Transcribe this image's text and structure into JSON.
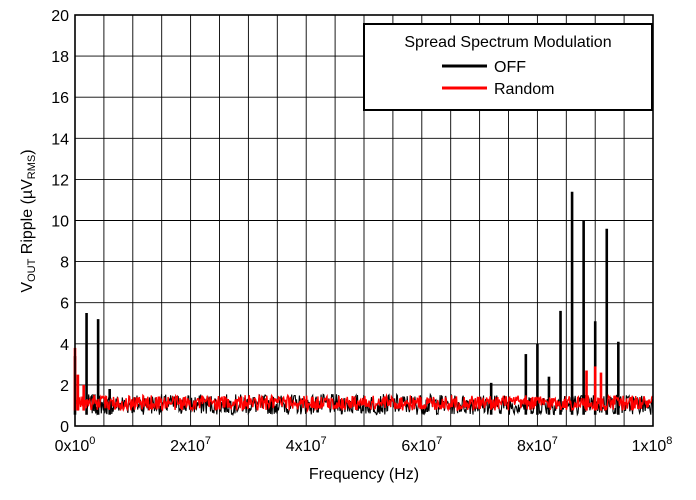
{
  "chart_data": {
    "type": "line",
    "title": "",
    "xlabel": "Frequency (Hz)",
    "ylabel": {
      "prefix": "V",
      "prefix_sub": "OUT",
      "middle": " Ripple (µV",
      "unit_sub": "RMS",
      "suffix": ")"
    },
    "xlim": [
      0,
      100000000
    ],
    "ylim": [
      0,
      20
    ],
    "x_ticks": [
      {
        "value": 0,
        "mantissa": "0x10",
        "exp": "0"
      },
      {
        "value": 20000000,
        "mantissa": "2x10",
        "exp": "7"
      },
      {
        "value": 40000000,
        "mantissa": "4x10",
        "exp": "7"
      },
      {
        "value": 60000000,
        "mantissa": "6x10",
        "exp": "7"
      },
      {
        "value": 80000000,
        "mantissa": "8x10",
        "exp": "7"
      },
      {
        "value": 100000000,
        "mantissa": "1x10",
        "exp": "8"
      }
    ],
    "y_ticks": [
      "0",
      "2",
      "4",
      "6",
      "8",
      "10",
      "12",
      "14",
      "16",
      "18",
      "20"
    ],
    "x_minor_divisions": 4,
    "grid": true,
    "legend": {
      "title": "Spread Spectrum Modulation",
      "position": "top-right"
    },
    "series": [
      {
        "name": "OFF",
        "color": "#000000",
        "baseline": {
          "start_x": 2000000,
          "end_x": 100000000,
          "low": 0.55,
          "high": 1.55
        },
        "spikes": [
          {
            "x": 0,
            "y": 3.4
          },
          {
            "x": 2000000,
            "y": 5.5
          },
          {
            "x": 4000000,
            "y": 5.2
          },
          {
            "x": 6000000,
            "y": 1.8
          },
          {
            "x": 72000000,
            "y": 2.1
          },
          {
            "x": 78000000,
            "y": 3.5
          },
          {
            "x": 80000000,
            "y": 4.0
          },
          {
            "x": 82000000,
            "y": 2.4
          },
          {
            "x": 84000000,
            "y": 5.6
          },
          {
            "x": 86000000,
            "y": 11.4
          },
          {
            "x": 88000000,
            "y": 10.0
          },
          {
            "x": 90000000,
            "y": 5.1
          },
          {
            "x": 92000000,
            "y": 9.6
          },
          {
            "x": 94000000,
            "y": 4.1
          }
        ]
      },
      {
        "name": "Random",
        "color": "#ff0000",
        "baseline": {
          "start_x": 0,
          "end_x": 100000000,
          "low": 0.75,
          "high": 1.5
        },
        "spikes": [
          {
            "x": 0,
            "y": 3.8
          },
          {
            "x": 500000,
            "y": 2.5
          },
          {
            "x": 1500000,
            "y": 2.0
          },
          {
            "x": 88500000,
            "y": 2.7
          },
          {
            "x": 90000000,
            "y": 2.9
          },
          {
            "x": 91000000,
            "y": 2.6
          }
        ]
      }
    ]
  }
}
